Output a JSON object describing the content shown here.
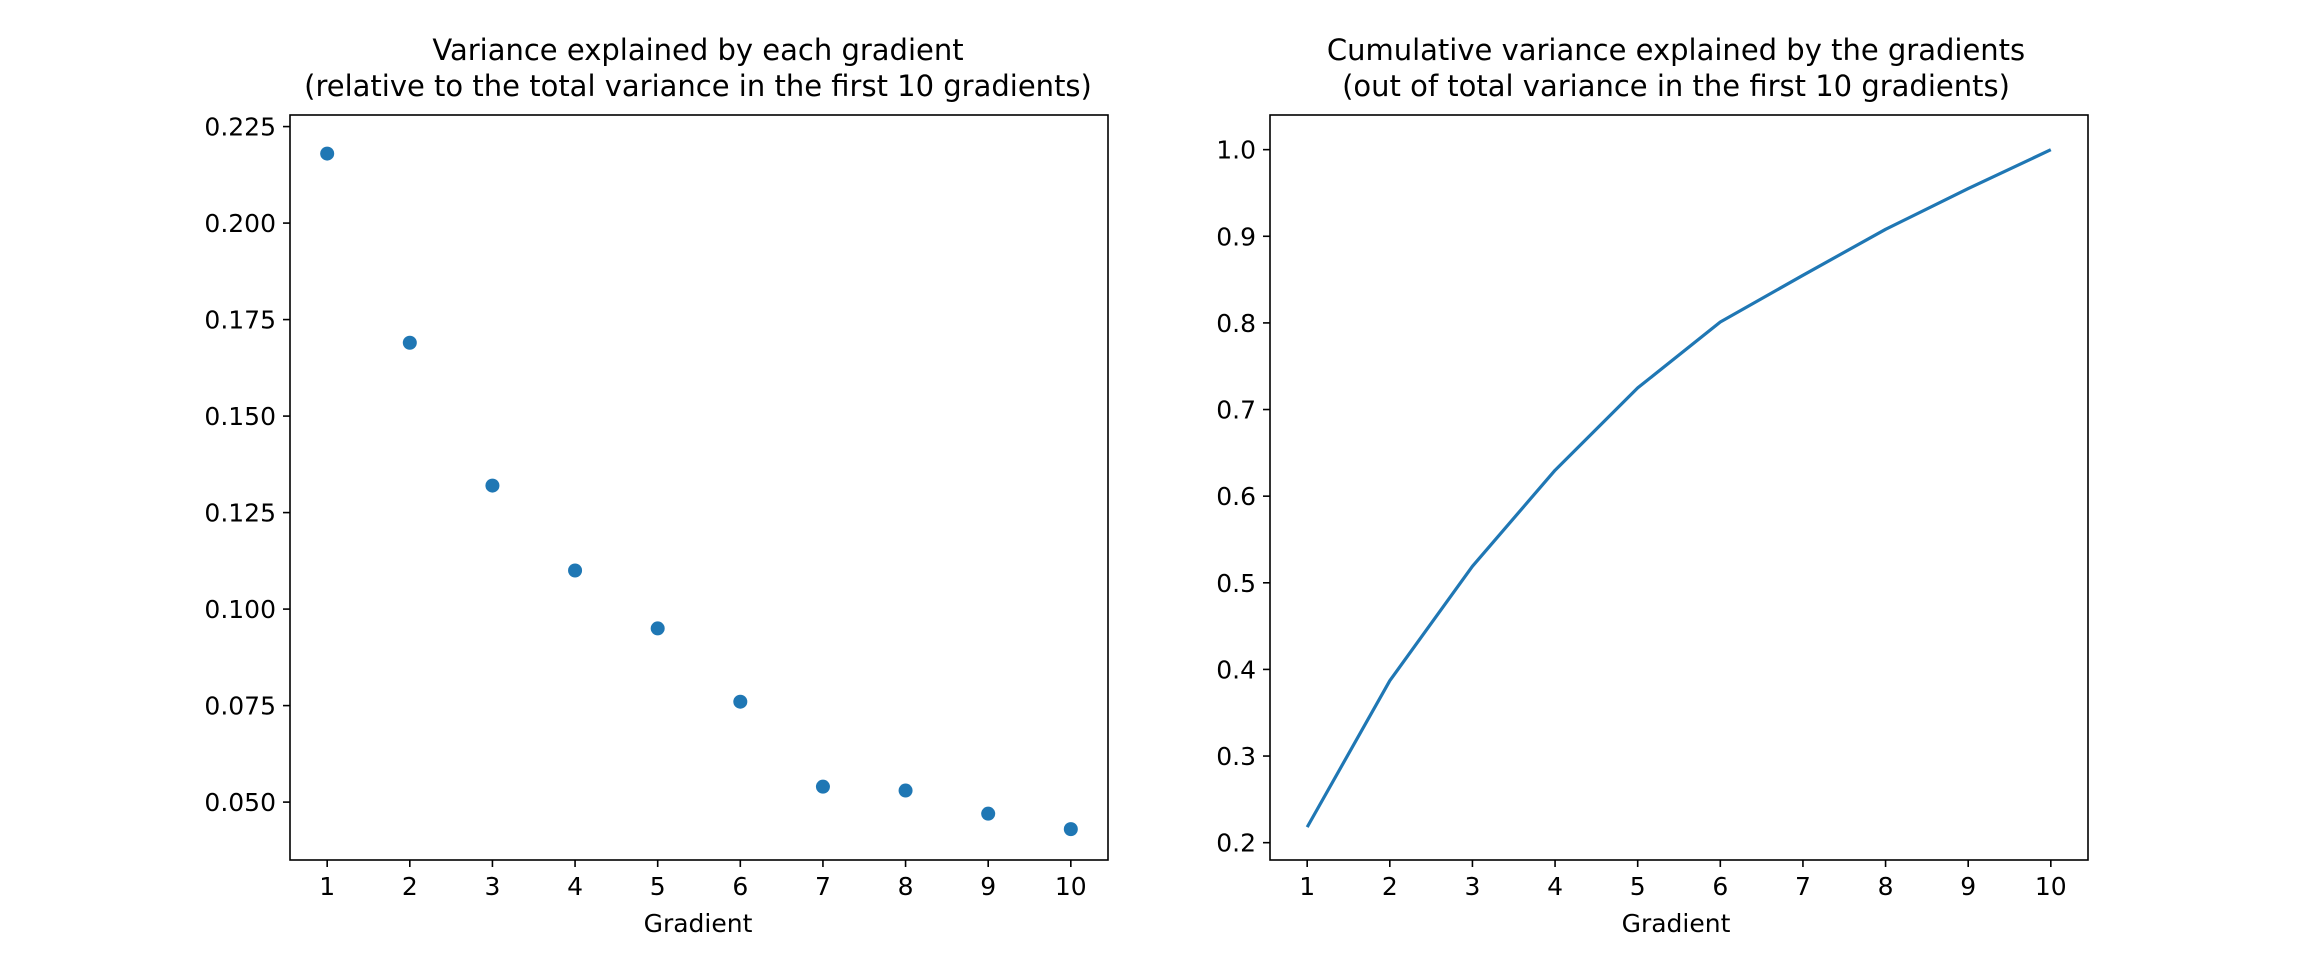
{
  "chart_data": [
    {
      "type": "scatter",
      "title": [
        "Variance explained by each gradient",
        "(relative to the total variance in the first 10 gradients)"
      ],
      "xlabel": "Gradient",
      "ylabel": "",
      "x": [
        1,
        2,
        3,
        4,
        5,
        6,
        7,
        8,
        9,
        10
      ],
      "y": [
        0.218,
        0.169,
        0.132,
        0.11,
        0.095,
        0.076,
        0.054,
        0.053,
        0.047,
        0.043
      ],
      "xlim": [
        0.55,
        10.45
      ],
      "ylim": [
        0.035,
        0.228
      ],
      "xticks": [
        1,
        2,
        3,
        4,
        5,
        6,
        7,
        8,
        9,
        10
      ],
      "yticks": [
        "0.050",
        "0.075",
        "0.100",
        "0.125",
        "0.150",
        "0.175",
        "0.200",
        "0.225"
      ],
      "color": "#1f77b4",
      "grid": false
    },
    {
      "type": "line",
      "title": [
        "Cumulative variance explained by the gradients",
        "(out of total variance in the first 10 gradients)"
      ],
      "xlabel": "Gradient",
      "ylabel": "",
      "x": [
        1,
        2,
        3,
        4,
        5,
        6,
        7,
        8,
        9,
        10
      ],
      "y": [
        0.218,
        0.387,
        0.519,
        0.63,
        0.725,
        0.801,
        0.855,
        0.908,
        0.955,
        1.0
      ],
      "xlim": [
        0.55,
        10.45
      ],
      "ylim": [
        0.18,
        1.04
      ],
      "xticks": [
        1,
        2,
        3,
        4,
        5,
        6,
        7,
        8,
        9,
        10
      ],
      "yticks": [
        "0.2",
        "0.3",
        "0.4",
        "0.5",
        "0.6",
        "0.7",
        "0.8",
        "0.9",
        "1.0"
      ],
      "color": "#1f77b4",
      "grid": false
    }
  ]
}
